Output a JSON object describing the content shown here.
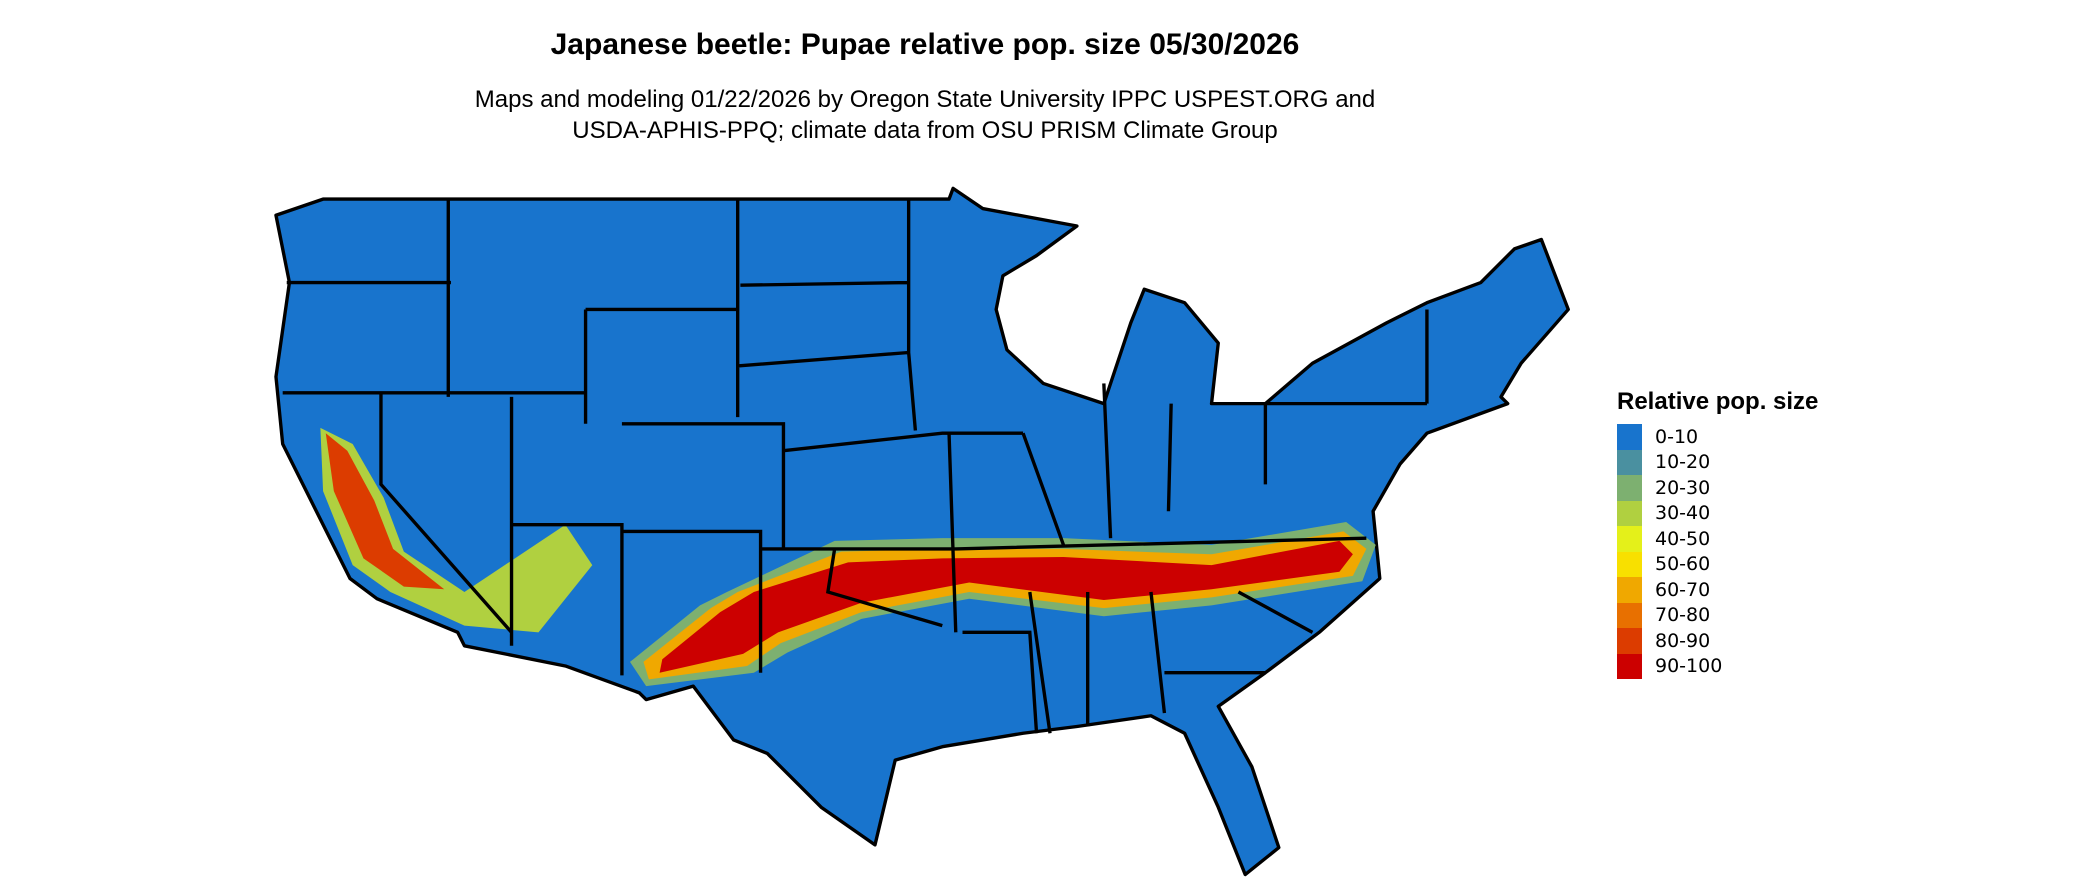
{
  "title": "Japanese beetle: Pupae relative pop. size 05/30/2026",
  "subtitle_lines": [
    "Maps and modeling 01/22/2026 by Oregon State University IPPC USPEST.ORG and",
    "USDA-APHIS-PPQ; climate data from OSU PRISM Climate Group"
  ],
  "legend": {
    "title": "Relative pop. size",
    "items": [
      {
        "label": "0-10",
        "color": "#1874CD"
      },
      {
        "label": "10-20",
        "color": "#4A90A0"
      },
      {
        "label": "20-30",
        "color": "#7DB070"
      },
      {
        "label": "30-40",
        "color": "#B0D040"
      },
      {
        "label": "40-50",
        "color": "#E4F01A"
      },
      {
        "label": "50-60",
        "color": "#F8E000"
      },
      {
        "label": "60-70",
        "color": "#F0A800"
      },
      {
        "label": "70-80",
        "color": "#E87000"
      },
      {
        "label": "80-90",
        "color": "#DC3C00"
      },
      {
        "label": "90-100",
        "color": "#CC0000"
      }
    ]
  },
  "map": {
    "region": "Contiguous United States",
    "base_color": "#1874CD",
    "border_color": "#000000"
  }
}
